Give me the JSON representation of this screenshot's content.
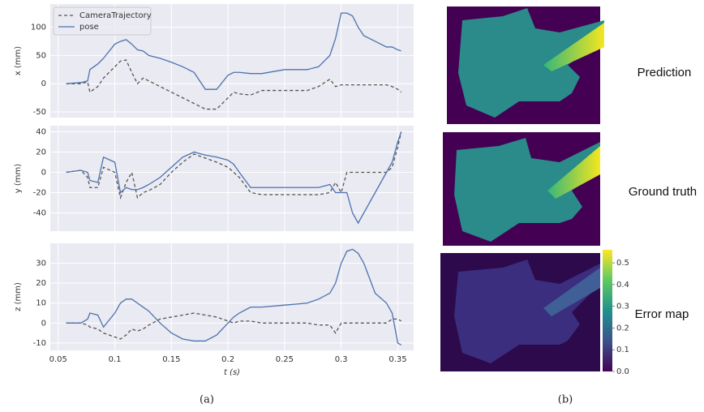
{
  "chart_data": [
    {
      "type": "line",
      "ylabel": "x (mm)",
      "legend": "upper left",
      "grid": true,
      "x": [
        0.057,
        0.07,
        0.076,
        0.078,
        0.085,
        0.09,
        0.1,
        0.105,
        0.11,
        0.115,
        0.12,
        0.125,
        0.13,
        0.14,
        0.15,
        0.16,
        0.17,
        0.18,
        0.19,
        0.2,
        0.205,
        0.21,
        0.22,
        0.23,
        0.25,
        0.27,
        0.28,
        0.29,
        0.295,
        0.3,
        0.305,
        0.31,
        0.315,
        0.32,
        0.33,
        0.34,
        0.345,
        0.35,
        0.353
      ],
      "series": [
        {
          "name": "CameraTrajectory",
          "color": "#555555",
          "dashed": true,
          "values": [
            0,
            0,
            3,
            -15,
            -5,
            10,
            30,
            40,
            42,
            20,
            0,
            10,
            5,
            -5,
            -15,
            -25,
            -35,
            -45,
            -45,
            -25,
            -15,
            -18,
            -20,
            -12,
            -12,
            -12,
            -5,
            8,
            -5,
            -2,
            -2,
            -2,
            -2,
            -2,
            -2,
            -2,
            -5,
            -10,
            -15
          ]
        },
        {
          "name": "pose",
          "color": "#4c72b0",
          "dashed": false,
          "values": [
            0,
            2,
            5,
            25,
            35,
            45,
            70,
            75,
            78,
            70,
            60,
            58,
            50,
            45,
            38,
            30,
            20,
            -10,
            -10,
            15,
            20,
            20,
            18,
            18,
            25,
            25,
            30,
            50,
            80,
            125,
            125,
            120,
            100,
            85,
            75,
            65,
            65,
            60,
            58
          ]
        }
      ],
      "xlim": [
        0.043,
        0.364
      ],
      "xticks": [
        0.05,
        0.1,
        0.15,
        0.2,
        0.25,
        0.3,
        0.35
      ],
      "ylim": [
        -60,
        141
      ],
      "yticks": [
        -50,
        0,
        50,
        100
      ]
    },
    {
      "type": "line",
      "ylabel": "y (mm)",
      "grid": true,
      "x": [
        0.057,
        0.07,
        0.076,
        0.078,
        0.085,
        0.09,
        0.1,
        0.105,
        0.11,
        0.115,
        0.12,
        0.125,
        0.13,
        0.14,
        0.15,
        0.16,
        0.17,
        0.18,
        0.19,
        0.2,
        0.205,
        0.21,
        0.22,
        0.23,
        0.25,
        0.27,
        0.28,
        0.29,
        0.295,
        0.3,
        0.305,
        0.31,
        0.315,
        0.32,
        0.33,
        0.34,
        0.345,
        0.35,
        0.353
      ],
      "series": [
        {
          "color": "#555555",
          "dashed": true,
          "values": [
            0,
            2,
            -5,
            -15,
            -15,
            5,
            0,
            -25,
            -10,
            0,
            -25,
            -20,
            -18,
            -12,
            0,
            10,
            18,
            14,
            10,
            5,
            0,
            -5,
            -20,
            -22,
            -22,
            -22,
            -22,
            -20,
            -10,
            -20,
            0,
            0,
            0,
            0,
            0,
            0,
            5,
            25,
            40
          ]
        },
        {
          "color": "#4c72b0",
          "dashed": false,
          "values": [
            0,
            2,
            0,
            -8,
            -10,
            15,
            10,
            -20,
            -15,
            -17,
            -17,
            -15,
            -12,
            -5,
            5,
            15,
            20,
            17,
            15,
            12,
            8,
            0,
            -15,
            -15,
            -15,
            -15,
            -15,
            -12,
            -20,
            -20,
            -20,
            -40,
            -50,
            -40,
            -20,
            0,
            10,
            30,
            40
          ]
        }
      ],
      "xlim": [
        0.043,
        0.364
      ],
      "xticks": [
        0.05,
        0.1,
        0.15,
        0.2,
        0.25,
        0.3,
        0.35
      ],
      "ylim": [
        -58,
        46
      ],
      "yticks": [
        -40,
        -20,
        0,
        20,
        40
      ]
    },
    {
      "type": "line",
      "ylabel": "z (mm)",
      "xlabel": "t (s)",
      "grid": true,
      "x": [
        0.057,
        0.07,
        0.076,
        0.078,
        0.085,
        0.09,
        0.1,
        0.105,
        0.11,
        0.115,
        0.12,
        0.125,
        0.13,
        0.14,
        0.15,
        0.16,
        0.17,
        0.18,
        0.19,
        0.2,
        0.205,
        0.21,
        0.22,
        0.23,
        0.25,
        0.27,
        0.28,
        0.29,
        0.295,
        0.3,
        0.305,
        0.31,
        0.315,
        0.32,
        0.33,
        0.34,
        0.345,
        0.35,
        0.353
      ],
      "series": [
        {
          "color": "#555555",
          "dashed": true,
          "values": [
            0,
            0,
            -1,
            -2,
            -3,
            -5,
            -7,
            -8,
            -6,
            -3,
            -4,
            -3,
            -1,
            2,
            3,
            4,
            5,
            4,
            3,
            1,
            0,
            1,
            1,
            0,
            0,
            0,
            -1,
            -1,
            -5,
            0,
            0,
            0,
            0,
            0,
            0,
            0,
            2,
            2,
            1
          ]
        },
        {
          "color": "#4c72b0",
          "dashed": false,
          "values": [
            0,
            0,
            2,
            5,
            4,
            -2,
            5,
            10,
            12,
            12,
            10,
            8,
            6,
            0,
            -5,
            -8,
            -9,
            -9,
            -6,
            0,
            3,
            5,
            8,
            8,
            9,
            10,
            12,
            15,
            20,
            30,
            36,
            37,
            35,
            30,
            15,
            10,
            5,
            -10,
            -11
          ]
        }
      ],
      "xlim": [
        0.043,
        0.364
      ],
      "xticks": [
        0.05,
        0.1,
        0.15,
        0.2,
        0.25,
        0.3,
        0.35
      ],
      "ylim": [
        -13.7,
        40
      ],
      "yticks": [
        -10,
        0,
        10,
        20,
        30
      ]
    }
  ],
  "images": {
    "labels": [
      "Prediction",
      "Ground truth",
      "Error map"
    ],
    "colorbar": {
      "lim": [
        0,
        0.56
      ],
      "ticks": [
        {
          "value": 0,
          "label": "0.0"
        },
        {
          "value": 0.1,
          "label": "0.1"
        },
        {
          "value": 0.2,
          "label": "0.2"
        },
        {
          "value": 0.3,
          "label": "0.3"
        },
        {
          "value": 0.4,
          "label": "0.4"
        },
        {
          "value": 0.5,
          "label": "0.5"
        }
      ]
    }
  },
  "captions": [
    "(a)",
    "(b)"
  ]
}
